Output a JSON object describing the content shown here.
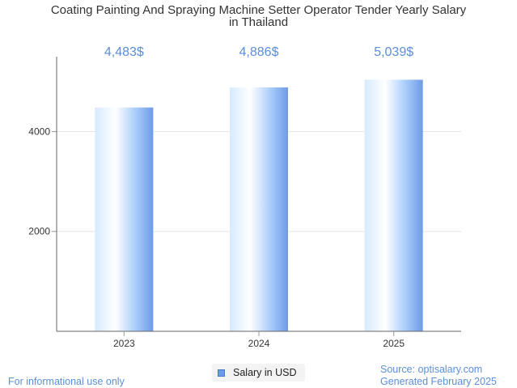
{
  "chart_data": {
    "type": "bar",
    "title_line1": "Coating Painting And Spraying Machine Setter Operator Tender Yearly Salary",
    "title_line2": "in Thailand",
    "categories": [
      "2023",
      "2024",
      "2025"
    ],
    "values": [
      4483,
      4886,
      5039
    ],
    "value_labels": [
      "4,483$",
      "4,886$",
      "5,039$"
    ],
    "series": [
      {
        "name": "Salary in USD",
        "values": [
          4483,
          4886,
          5039
        ]
      }
    ],
    "yticks": [
      2000,
      4000
    ],
    "ylim": [
      0,
      5500
    ],
    "grid": true,
    "legend_position": "bottom-center"
  },
  "colors": {
    "bar_light": "#ffffff",
    "bar_mid": "#b9d9ff",
    "bar_dark": "#6e9be6",
    "value_label": "#5b8fd9",
    "axis": "#333333",
    "gridline": "#e6e6e6"
  },
  "footer": {
    "disclaimer": "For informational use only",
    "source": "Source: optisalary.com",
    "generated": "Generated February 2025"
  }
}
